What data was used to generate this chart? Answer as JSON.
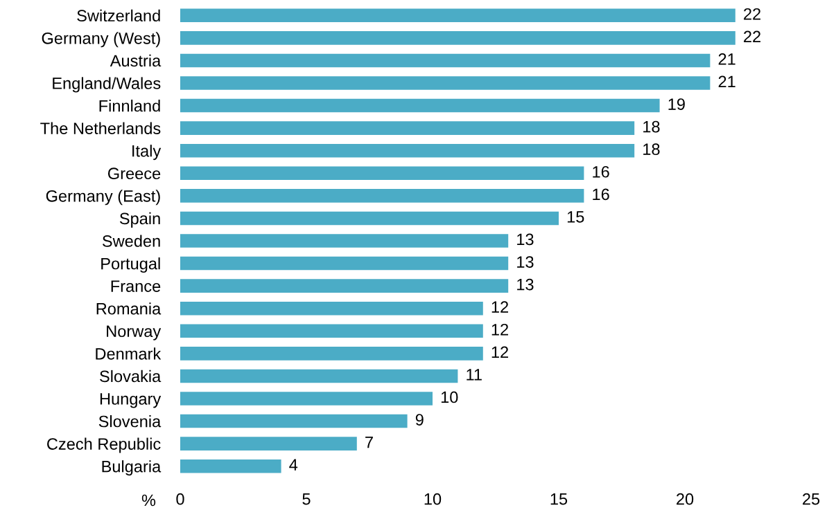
{
  "chart_data": {
    "type": "bar",
    "orientation": "horizontal",
    "categories": [
      "Switzerland",
      "Germany (West)",
      "Austria",
      "England/Wales",
      "Finnland",
      "The Netherlands",
      "Italy",
      "Greece",
      "Germany (East)",
      "Spain",
      "Sweden",
      "Portugal",
      "France",
      "Romania",
      "Norway",
      "Denmark",
      "Slovakia",
      "Hungary",
      "Slovenia",
      "Czech Republic",
      "Bulgaria"
    ],
    "values": [
      22,
      22,
      21,
      21,
      19,
      18,
      18,
      16,
      16,
      15,
      13,
      13,
      13,
      12,
      12,
      12,
      11,
      10,
      9,
      7,
      4
    ],
    "color": "#4bacc6",
    "xlabel": "%",
    "xlim": [
      0,
      25
    ],
    "xticks": [
      0,
      5,
      10,
      15,
      20,
      25
    ],
    "data_labels": true
  }
}
